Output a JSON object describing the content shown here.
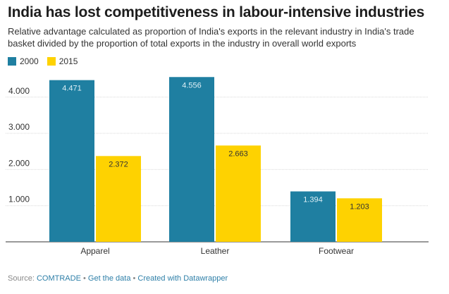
{
  "header": {
    "title": "India has lost competitiveness in labour-intensive industries",
    "subtitle": "Relative advantage calculated as proportion of India's exports in the relevant industry in India's trade basket divided by the proportion of total exports in the industry in overall world exports"
  },
  "legend": [
    {
      "label": "2000",
      "color": "#1f7fa1"
    },
    {
      "label": "2015",
      "color": "#fed201"
    }
  ],
  "footer": {
    "source_label": "Source: ",
    "source_name": "COMTRADE",
    "sep1": " • ",
    "get_data": "Get the data",
    "sep2": " • ",
    "created_with": "Created with Datawrapper"
  },
  "chart_data": {
    "type": "bar",
    "categories": [
      "Apparel",
      "Leather",
      "Footwear"
    ],
    "series": [
      {
        "name": "2000",
        "values": [
          4.471,
          4.556,
          1.394
        ],
        "labels": [
          "4.471",
          "4.556",
          "1.394"
        ],
        "color": "#1f7fa1"
      },
      {
        "name": "2015",
        "values": [
          2.372,
          2.663,
          1.203
        ],
        "labels": [
          "2.372",
          "2.663",
          "1.203"
        ],
        "color": "#fed201"
      }
    ],
    "yticks": [
      1,
      2,
      3,
      4
    ],
    "ytick_labels": [
      "1.000",
      "2.000",
      "3.000",
      "4.000"
    ],
    "ylim": [
      0,
      4.7
    ],
    "grid": true,
    "legend_position": "top-left"
  }
}
